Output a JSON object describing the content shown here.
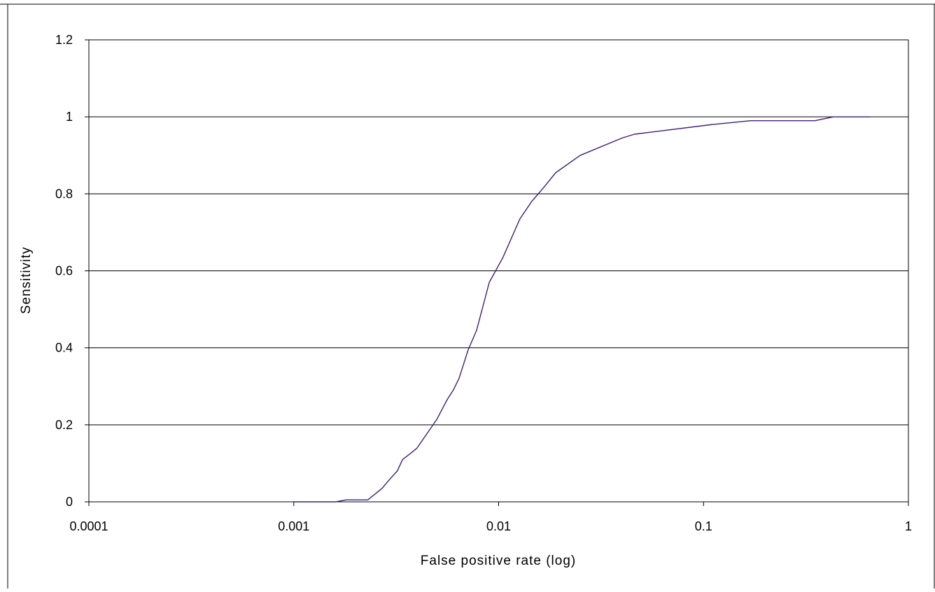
{
  "chart_data": {
    "type": "line",
    "title": "",
    "xlabel": "False positive rate (log)",
    "ylabel": "Sensitivity",
    "x_scale": "log",
    "xlim": [
      0.0001,
      1
    ],
    "ylim": [
      0,
      1.2
    ],
    "x_ticks": [
      0.0001,
      0.001,
      0.01,
      0.1,
      1
    ],
    "x_tick_labels": [
      "0.0001",
      "0.001",
      "0.01",
      "0.1",
      "1"
    ],
    "y_ticks": [
      0,
      0.2,
      0.4,
      0.6,
      0.8,
      1,
      1.2
    ],
    "y_tick_labels": [
      "0",
      "0.2",
      "0.4",
      "0.6",
      "0.8",
      "1",
      "1.2"
    ],
    "grid": "horizontal",
    "legend": "none",
    "series": [
      {
        "color": "#3d1f7a",
        "x": [
          0.001,
          0.0016,
          0.0018,
          0.0023,
          0.0027,
          0.0029,
          0.0032,
          0.0034,
          0.0037,
          0.004,
          0.005,
          0.0056,
          0.006,
          0.0064,
          0.0071,
          0.0078,
          0.009,
          0.0105,
          0.0127,
          0.0145,
          0.0165,
          0.019,
          0.025,
          0.04,
          0.046,
          0.055,
          0.11,
          0.17,
          0.35,
          0.43,
          0.65
        ],
        "y": [
          0,
          0,
          0.005,
          0.005,
          0.035,
          0.055,
          0.08,
          0.11,
          0.125,
          0.14,
          0.215,
          0.265,
          0.29,
          0.32,
          0.395,
          0.445,
          0.57,
          0.635,
          0.735,
          0.78,
          0.815,
          0.855,
          0.9,
          0.945,
          0.955,
          0.96,
          0.98,
          0.99,
          0.99,
          1,
          1
        ]
      }
    ]
  }
}
